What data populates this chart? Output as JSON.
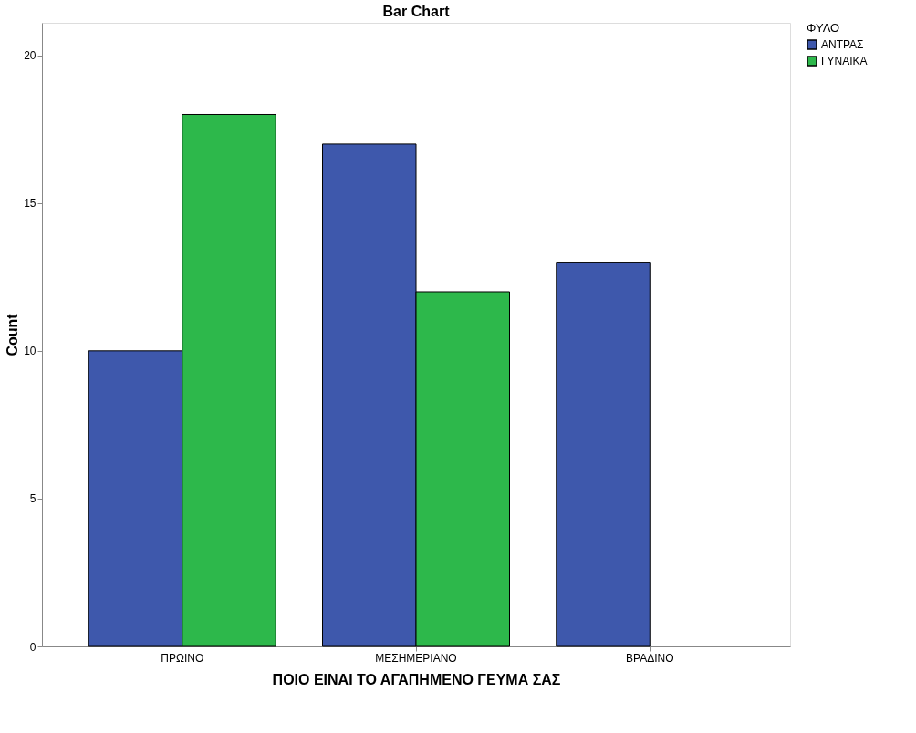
{
  "chart_data": {
    "type": "bar",
    "title": "Bar Chart",
    "xlabel": "ΠΟΙΟ ΕΙΝΑΙ ΤΟ ΑΓΑΠΗΜΕΝΟ ΓΕΥΜΑ ΣΑΣ",
    "ylabel": "Count",
    "legend_title": "ΦΥΛΟ",
    "categories": [
      "ΠΡΩΙΝΟ",
      "ΜΕΣΗΜΕΡΙΑΝΟ",
      "ΒΡΑΔΙΝΟ"
    ],
    "series": [
      {
        "name": "ΑΝΤΡΑΣ",
        "color": "#3e58ac",
        "values": [
          10,
          17,
          13
        ]
      },
      {
        "name": "ΓΥΝΑΙΚΑ",
        "color": "#2db84b",
        "values": [
          18,
          12,
          null
        ]
      }
    ],
    "ylim": [
      0,
      21.1
    ],
    "yticks": [
      0,
      5,
      10,
      15,
      20
    ],
    "grid": false,
    "legend": "top right"
  }
}
